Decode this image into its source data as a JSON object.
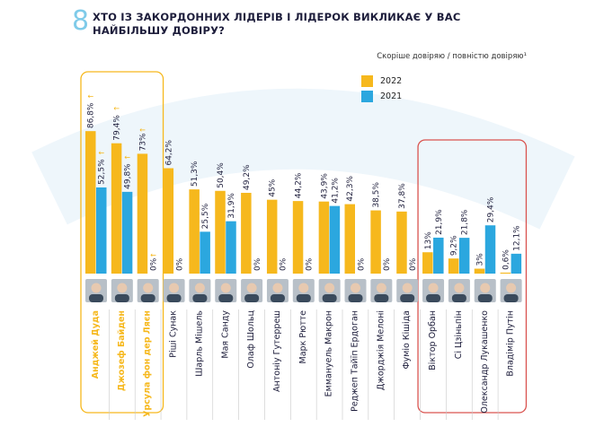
{
  "question_number": "8",
  "chart_data": {
    "type": "bar",
    "title": "ХТО ІЗ ЗАКОРДОННИХ ЛІДЕРІВ І ЛІДЕРОК ВИКЛИКАЄ У ВАС НАЙБІЛЬШУ ДОВІРУ?",
    "subtitle": "Скоріше довіряю / повністю довіряю¹",
    "categories": [
      "Анджей Дуда",
      "Джозеф Байден",
      "Урсула фон дер Ляєн",
      "Ріші Сунак",
      "Шарль Мішель",
      "Мая Санду",
      "Олаф Шольц",
      "Антоніу Гутерреш",
      "Марк Рютте",
      "Еммануель Макрон",
      "Реджеп Тайїп Ердоган",
      "Джорджія Мелоні",
      "Фуміо Кішіда",
      "Віктор Орбан",
      "Сі Цзіньпін",
      "Олександр Лукашенко",
      "Владімір Путін"
    ],
    "series": [
      {
        "name": "2022",
        "color": "#f6b81d",
        "values": [
          86.8,
          79.4,
          73,
          64.2,
          51.3,
          50.4,
          49.2,
          45,
          44.2,
          43.9,
          42.3,
          38.5,
          37.8,
          13,
          9.2,
          3,
          0.6
        ],
        "labels": [
          "86,8%",
          "79,4%",
          "73%",
          "64,2%",
          "51,3%",
          "50,4%",
          "49,2%",
          "45%",
          "44,2%",
          "43,9%",
          "42,3%",
          "38,5%",
          "37,8%",
          "13%",
          "9,2%",
          "3%",
          "0,6%"
        ]
      },
      {
        "name": "2021",
        "color": "#2ba7df",
        "values": [
          52.5,
          49.8,
          0,
          0,
          25.5,
          31.9,
          0,
          0,
          0,
          41.2,
          0,
          0,
          0,
          21.9,
          21.8,
          29.4,
          12.1
        ],
        "labels": [
          "52,5%",
          "49,8%",
          "0%",
          "0%",
          "25,5%",
          "31,9%",
          "0%",
          "0%",
          "0%",
          "41,2%",
          "0%",
          "0%",
          "0%",
          "21,9%",
          "21,8%",
          "29,4%",
          "12,1%"
        ]
      }
    ],
    "highlight_top": [
      0,
      1,
      2
    ],
    "highlight_bottom": [
      13,
      14,
      15,
      16
    ],
    "highlight_top_color": "#f6b81d",
    "highlight_bottom_color": "#d9534f",
    "label_color": "#1d1d3b",
    "highlight_label_color": "#f6b81d",
    "ylim": [
      0,
      100
    ]
  }
}
